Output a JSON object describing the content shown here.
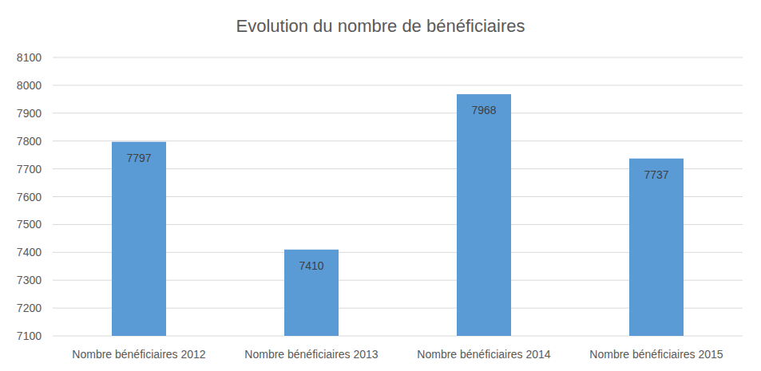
{
  "chart_data": {
    "type": "bar",
    "title": "Evolution du nombre de bénéficiaires",
    "categories": [
      "Nombre bénéficiaires 2012",
      "Nombre bénéficiaires 2013",
      "Nombre bénéficiaires 2014",
      "Nombre bénéficiaires 2015"
    ],
    "values": [
      7797,
      7410,
      7968,
      7737
    ],
    "color": "#5b9bd5",
    "ylim": [
      7100,
      8100
    ],
    "yticks": [
      7100,
      7200,
      7300,
      7400,
      7500,
      7600,
      7700,
      7800,
      7900,
      8000,
      8100
    ],
    "grid": true,
    "data_labels": true
  }
}
